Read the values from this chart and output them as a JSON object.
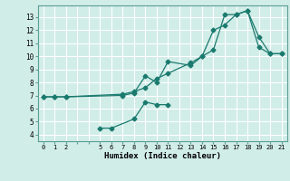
{
  "xlabel": "Humidex (Indice chaleur)",
  "bg_color": "#d1ede8",
  "grid_color": "#ffffff",
  "line_color": "#1a7a6e",
  "xlim": [
    -0.5,
    21.5
  ],
  "ylim": [
    3.5,
    13.9
  ],
  "xtick_positions": [
    0,
    1,
    2,
    5,
    6,
    7,
    8,
    9,
    10,
    11,
    12,
    13,
    14,
    15,
    16,
    17,
    18,
    19,
    20,
    21
  ],
  "ytick_positions": [
    4,
    5,
    6,
    7,
    8,
    9,
    10,
    11,
    12,
    13
  ],
  "line1": {
    "x": [
      0,
      1,
      2,
      7,
      8,
      9,
      10,
      11,
      13,
      14,
      15,
      16,
      17,
      18,
      19,
      20,
      21
    ],
    "y": [
      6.9,
      6.9,
      6.9,
      7.1,
      7.3,
      7.6,
      8.3,
      8.7,
      9.5,
      10.0,
      10.5,
      13.2,
      13.2,
      13.5,
      10.7,
      10.2,
      10.2
    ]
  },
  "line2": {
    "x": [
      0,
      1,
      2,
      7,
      8,
      9,
      10,
      11,
      13,
      14,
      15,
      16,
      17,
      18,
      19,
      20,
      21
    ],
    "y": [
      6.9,
      6.9,
      6.9,
      7.0,
      7.2,
      8.5,
      8.0,
      9.6,
      9.3,
      10.0,
      12.0,
      12.4,
      13.2,
      13.5,
      11.5,
      10.2,
      10.2
    ]
  },
  "line3": {
    "x": [
      5,
      6,
      8,
      9,
      10,
      11
    ],
    "y": [
      4.5,
      4.5,
      5.2,
      6.5,
      6.3,
      6.3
    ]
  }
}
